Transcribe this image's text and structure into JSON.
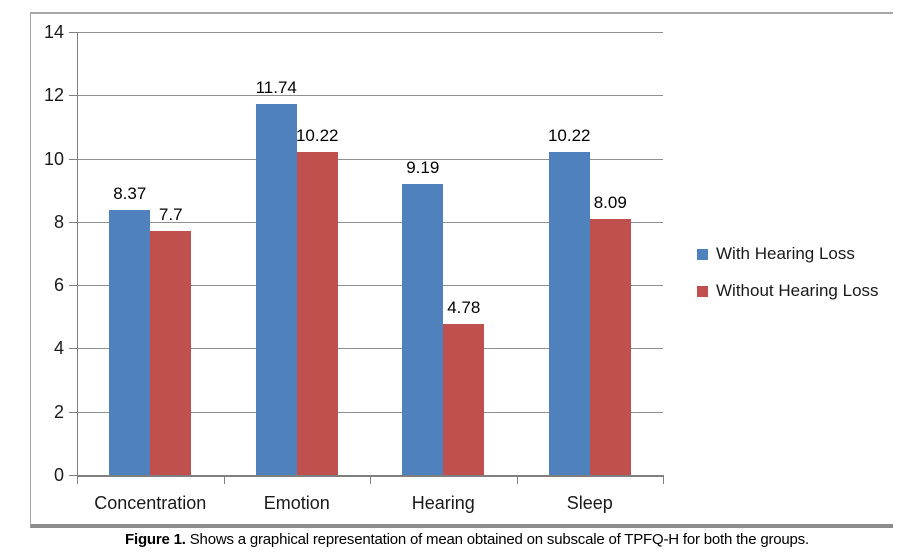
{
  "figure": {
    "caption": {
      "label": "Figure 1.",
      "text": "Shows a graphical representation of mean obtained on subscale of TPFQ-H for both the groups."
    }
  },
  "chart_data": {
    "type": "bar",
    "title": "",
    "categories": [
      "Concentration",
      "Emotion",
      "Hearing",
      "Sleep"
    ],
    "series": [
      {
        "name": "With Hearing Loss",
        "color": "#4F81BD",
        "values": [
          8.37,
          11.74,
          9.19,
          10.22
        ]
      },
      {
        "name": "Without Hearing Loss",
        "color": "#C0504D",
        "values": [
          7.7,
          10.22,
          4.78,
          8.09
        ]
      }
    ],
    "ylim": [
      0,
      14
    ],
    "yticks": [
      0,
      2,
      4,
      6,
      8,
      10,
      12,
      14
    ],
    "xlabel": "",
    "ylabel": "",
    "grid": true,
    "data_labels": true,
    "legend_position": "right",
    "plot_border_color": "#a6a6a6",
    "gridline_color": "#8f8f8f"
  }
}
